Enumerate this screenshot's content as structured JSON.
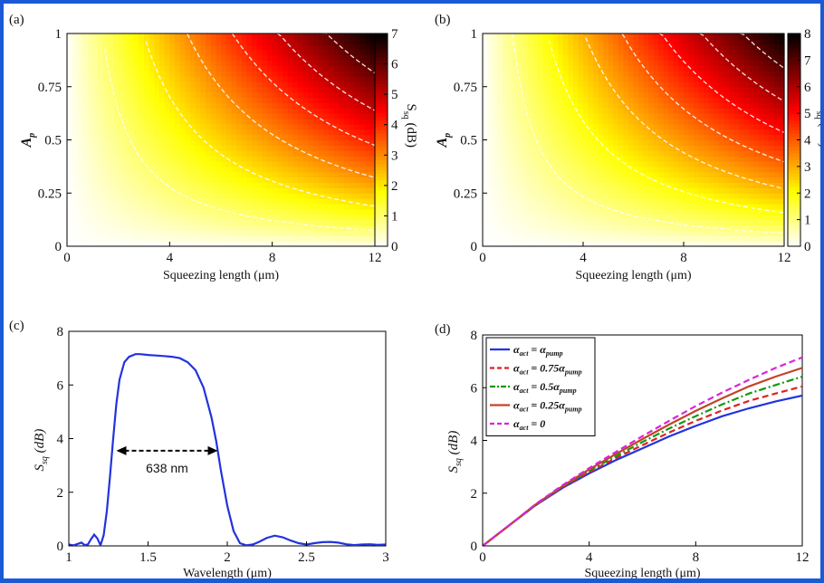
{
  "chart_data": [
    {
      "panel": "(a)",
      "type": "heatmap",
      "xlabel": "Squeezing length (μm)",
      "ylabel": "A",
      "ylabel_sub": "p",
      "xlim": [
        0,
        12
      ],
      "ylim": [
        0,
        1
      ],
      "xticks": [
        0,
        4,
        8,
        12
      ],
      "yticks": [
        0,
        0.25,
        0.5,
        0.75,
        1
      ],
      "ytick_labels": [
        "0",
        "0.25",
        "0.5",
        "0.75",
        "1"
      ],
      "colorbar": {
        "label": "S",
        "label_sub": "sq",
        "label_unit": "(dB)",
        "min": 0,
        "max": 7,
        "ticks": [
          0,
          1,
          2,
          3,
          4,
          5,
          6,
          7
        ]
      },
      "zmax": 7,
      "contour_levels": [
        1,
        2,
        3,
        4,
        5,
        6
      ],
      "colormap": "hot-reversed"
    },
    {
      "panel": "(b)",
      "type": "heatmap",
      "xlabel": "Squeezing length (μm)",
      "ylabel": "A",
      "ylabel_sub": "p",
      "xlim": [
        0,
        12
      ],
      "ylim": [
        0,
        1
      ],
      "xticks": [
        0,
        4,
        8,
        12
      ],
      "yticks": [
        0,
        0.25,
        0.5,
        0.75,
        1
      ],
      "ytick_labels": [
        "0",
        "0.25",
        "0.5",
        "0.75",
        "1"
      ],
      "colorbar": {
        "label": "S",
        "label_sub": "sq",
        "label_unit": "(dB)",
        "min": 0,
        "max": 8,
        "ticks": [
          0,
          1,
          2,
          3,
          4,
          5,
          6,
          7,
          8
        ]
      },
      "zmax": 8,
      "contour_levels": [
        1,
        2,
        3,
        4,
        5,
        6,
        7
      ],
      "colormap": "hot-reversed"
    },
    {
      "panel": "(c)",
      "type": "line",
      "xlabel": "Wavelength (μm)",
      "ylabel": "S",
      "ylabel_sub": "sq",
      "ylabel_unit": "(dB)",
      "xlim": [
        1,
        3
      ],
      "ylim": [
        0,
        8
      ],
      "xticks": [
        1,
        1.5,
        2,
        2.5,
        3
      ],
      "yticks": [
        0,
        2,
        4,
        6,
        8
      ],
      "annotation": {
        "text": "638 nm",
        "x_start": 1.3,
        "x_end": 1.94,
        "y": 3.55
      },
      "series": [
        {
          "color": "#2233dd",
          "x": [
            1.0,
            1.03,
            1.06,
            1.08,
            1.1,
            1.12,
            1.14,
            1.16,
            1.18,
            1.2,
            1.22,
            1.24,
            1.26,
            1.28,
            1.3,
            1.32,
            1.35,
            1.38,
            1.4,
            1.42,
            1.45,
            1.5,
            1.55,
            1.6,
            1.65,
            1.7,
            1.75,
            1.8,
            1.85,
            1.9,
            1.93,
            1.96,
            2.0,
            2.04,
            2.08,
            2.12,
            2.16,
            2.2,
            2.25,
            2.3,
            2.35,
            2.4,
            2.45,
            2.5,
            2.55,
            2.6,
            2.65,
            2.7,
            2.75,
            2.8,
            2.85,
            2.9,
            2.95,
            3.0
          ],
          "y": [
            0.05,
            0.02,
            0.08,
            0.12,
            0.03,
            0.05,
            0.25,
            0.42,
            0.28,
            0.02,
            0.4,
            1.3,
            2.6,
            4.0,
            5.3,
            6.2,
            6.85,
            7.05,
            7.1,
            7.15,
            7.15,
            7.12,
            7.1,
            7.08,
            7.05,
            7.0,
            6.85,
            6.55,
            5.9,
            4.8,
            3.9,
            2.8,
            1.5,
            0.55,
            0.1,
            0.02,
            0.05,
            0.15,
            0.3,
            0.38,
            0.32,
            0.2,
            0.1,
            0.05,
            0.1,
            0.14,
            0.15,
            0.12,
            0.06,
            0.03,
            0.05,
            0.06,
            0.04,
            0.05
          ]
        }
      ]
    },
    {
      "panel": "(d)",
      "type": "line",
      "xlabel": "Squeezing length (μm)",
      "ylabel": "S",
      "ylabel_sub": "sq",
      "ylabel_unit": "(dB)",
      "xlim": [
        0,
        12
      ],
      "ylim": [
        0,
        8
      ],
      "xticks": [
        0,
        4,
        8,
        12
      ],
      "yticks": [
        0,
        2,
        4,
        6,
        8
      ],
      "legend": "top-left",
      "series": [
        {
          "name_main": "α",
          "name_sub": "act",
          "name_rest": " = α",
          "name_rest_sub": "pump",
          "color": "#2233dd",
          "dash": "solid",
          "x": [
            0,
            1,
            2,
            3,
            4,
            5,
            6,
            7,
            8,
            9,
            10,
            11,
            12
          ],
          "y": [
            0,
            0.78,
            1.55,
            2.2,
            2.75,
            3.25,
            3.7,
            4.15,
            4.55,
            4.92,
            5.22,
            5.48,
            5.7
          ]
        },
        {
          "name_main": "α",
          "name_sub": "act",
          "name_rest": " = 0.75α",
          "name_rest_sub": "pump",
          "color": "#dd2222",
          "dash": "dashed",
          "x": [
            0,
            1,
            2,
            3,
            4,
            5,
            6,
            7,
            8,
            9,
            10,
            11,
            12
          ],
          "y": [
            0,
            0.78,
            1.56,
            2.23,
            2.8,
            3.33,
            3.82,
            4.3,
            4.74,
            5.14,
            5.5,
            5.78,
            6.05
          ]
        },
        {
          "name_main": "α",
          "name_sub": "act",
          "name_rest": " = 0.5α",
          "name_rest_sub": "pump",
          "color": "#119911",
          "dash": "dashdot",
          "x": [
            0,
            1,
            2,
            3,
            4,
            5,
            6,
            7,
            8,
            9,
            10,
            11,
            12
          ],
          "y": [
            0,
            0.78,
            1.57,
            2.25,
            2.85,
            3.4,
            3.94,
            4.45,
            4.92,
            5.37,
            5.78,
            6.1,
            6.42
          ]
        },
        {
          "name_main": "α",
          "name_sub": "act",
          "name_rest": " = 0.25α",
          "name_rest_sub": "pump",
          "color": "#c0442a",
          "dash": "solid",
          "x": [
            0,
            1,
            2,
            3,
            4,
            5,
            6,
            7,
            8,
            9,
            10,
            11,
            12
          ],
          "y": [
            0,
            0.78,
            1.58,
            2.27,
            2.9,
            3.48,
            4.05,
            4.6,
            5.12,
            5.6,
            6.05,
            6.42,
            6.75
          ]
        },
        {
          "name_main": "α",
          "name_sub": "act",
          "name_rest": " = 0",
          "name_rest_sub": "",
          "color": "#dd22dd",
          "dash": "dashed",
          "x": [
            0,
            1,
            2,
            3,
            4,
            5,
            6,
            7,
            8,
            9,
            10,
            11,
            12
          ],
          "y": [
            0,
            0.78,
            1.59,
            2.3,
            2.95,
            3.56,
            4.16,
            4.74,
            5.3,
            5.82,
            6.3,
            6.75,
            7.15
          ]
        }
      ]
    }
  ]
}
